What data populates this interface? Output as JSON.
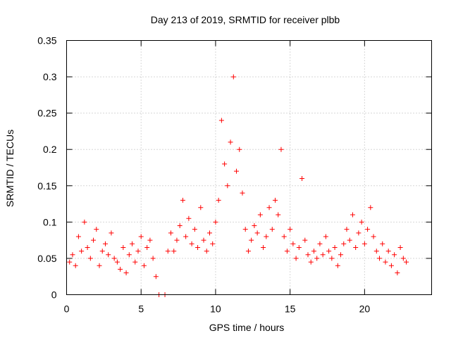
{
  "chart_data": {
    "type": "scatter",
    "title": "Day 213 of 2019, SRMTID for receiver plbb",
    "xlabel": "GPS time / hours",
    "ylabel": "SRMTID / TECUs",
    "xlim": [
      0,
      24.5
    ],
    "ylim": [
      0,
      0.35
    ],
    "xticks": [
      0,
      5,
      10,
      15,
      20
    ],
    "xtick_labels": [
      "0",
      "5",
      "10",
      "15",
      "20"
    ],
    "yticks": [
      0,
      0.05,
      0.1,
      0.15,
      0.2,
      0.25,
      0.3,
      0.35
    ],
    "ytick_labels": [
      "0",
      "0.05",
      "0.1",
      "0.15",
      "0.2",
      "0.25",
      "0.3",
      "0.35"
    ],
    "grid": true,
    "marker": "plus",
    "color": "#ff0000",
    "series": [
      {
        "name": "SRMTID",
        "points": [
          [
            0.2,
            0.045
          ],
          [
            0.4,
            0.055
          ],
          [
            0.6,
            0.04
          ],
          [
            0.8,
            0.08
          ],
          [
            1.0,
            0.06
          ],
          [
            1.2,
            0.1
          ],
          [
            1.4,
            0.065
          ],
          [
            1.6,
            0.05
          ],
          [
            1.8,
            0.075
          ],
          [
            2.0,
            0.09
          ],
          [
            2.2,
            0.04
          ],
          [
            2.4,
            0.06
          ],
          [
            2.6,
            0.07
          ],
          [
            2.8,
            0.055
          ],
          [
            3.0,
            0.085
          ],
          [
            3.2,
            0.05
          ],
          [
            3.4,
            0.045
          ],
          [
            3.6,
            0.035
          ],
          [
            3.8,
            0.065
          ],
          [
            4.0,
            0.03
          ],
          [
            4.2,
            0.055
          ],
          [
            4.4,
            0.07
          ],
          [
            4.6,
            0.045
          ],
          [
            4.8,
            0.06
          ],
          [
            5.0,
            0.08
          ],
          [
            5.2,
            0.04
          ],
          [
            5.4,
            0.065
          ],
          [
            5.6,
            0.075
          ],
          [
            5.8,
            0.05
          ],
          [
            6.0,
            0.025
          ],
          [
            6.2,
            0.0
          ],
          [
            6.6,
            0.0
          ],
          [
            6.8,
            0.06
          ],
          [
            7.0,
            0.085
          ],
          [
            7.2,
            0.06
          ],
          [
            7.4,
            0.075
          ],
          [
            7.6,
            0.095
          ],
          [
            7.8,
            0.13
          ],
          [
            8.0,
            0.08
          ],
          [
            8.2,
            0.105
          ],
          [
            8.4,
            0.07
          ],
          [
            8.6,
            0.09
          ],
          [
            8.8,
            0.065
          ],
          [
            9.0,
            0.12
          ],
          [
            9.2,
            0.075
          ],
          [
            9.4,
            0.06
          ],
          [
            9.6,
            0.085
          ],
          [
            9.8,
            0.07
          ],
          [
            10.0,
            0.1
          ],
          [
            10.2,
            0.13
          ],
          [
            10.4,
            0.24
          ],
          [
            10.6,
            0.18
          ],
          [
            10.8,
            0.15
          ],
          [
            11.0,
            0.21
          ],
          [
            11.2,
            0.3
          ],
          [
            11.4,
            0.17
          ],
          [
            11.6,
            0.2
          ],
          [
            11.8,
            0.14
          ],
          [
            12.0,
            0.09
          ],
          [
            12.2,
            0.06
          ],
          [
            12.4,
            0.075
          ],
          [
            12.6,
            0.095
          ],
          [
            12.8,
            0.085
          ],
          [
            13.0,
            0.11
          ],
          [
            13.2,
            0.065
          ],
          [
            13.4,
            0.08
          ],
          [
            13.6,
            0.12
          ],
          [
            13.8,
            0.09
          ],
          [
            14.0,
            0.13
          ],
          [
            14.2,
            0.11
          ],
          [
            14.4,
            0.2
          ],
          [
            14.6,
            0.08
          ],
          [
            14.8,
            0.06
          ],
          [
            15.0,
            0.09
          ],
          [
            15.2,
            0.07
          ],
          [
            15.4,
            0.05
          ],
          [
            15.6,
            0.065
          ],
          [
            15.8,
            0.16
          ],
          [
            16.0,
            0.075
          ],
          [
            16.2,
            0.055
          ],
          [
            16.4,
            0.045
          ],
          [
            16.6,
            0.06
          ],
          [
            16.8,
            0.05
          ],
          [
            17.0,
            0.07
          ],
          [
            17.2,
            0.055
          ],
          [
            17.4,
            0.08
          ],
          [
            17.6,
            0.06
          ],
          [
            17.8,
            0.05
          ],
          [
            18.0,
            0.065
          ],
          [
            18.2,
            0.04
          ],
          [
            18.4,
            0.055
          ],
          [
            18.6,
            0.07
          ],
          [
            18.8,
            0.09
          ],
          [
            19.0,
            0.075
          ],
          [
            19.2,
            0.11
          ],
          [
            19.4,
            0.065
          ],
          [
            19.6,
            0.085
          ],
          [
            19.8,
            0.1
          ],
          [
            20.0,
            0.07
          ],
          [
            20.2,
            0.09
          ],
          [
            20.4,
            0.12
          ],
          [
            20.6,
            0.08
          ],
          [
            20.8,
            0.06
          ],
          [
            21.0,
            0.05
          ],
          [
            21.2,
            0.07
          ],
          [
            21.4,
            0.045
          ],
          [
            21.6,
            0.06
          ],
          [
            21.8,
            0.04
          ],
          [
            22.0,
            0.055
          ],
          [
            22.2,
            0.03
          ],
          [
            22.4,
            0.065
          ],
          [
            22.6,
            0.05
          ],
          [
            22.8,
            0.045
          ]
        ]
      }
    ]
  }
}
